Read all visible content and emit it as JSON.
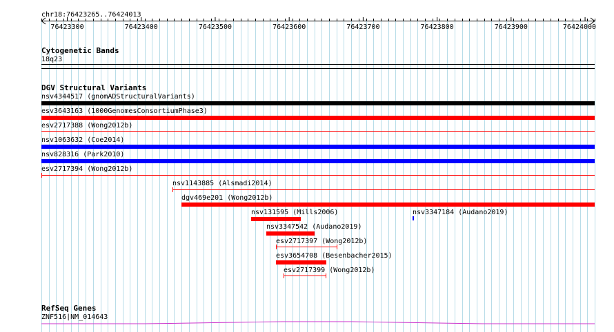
{
  "location": "chr18:76423265..76424013",
  "ruler": {
    "ticks": [
      "76423300",
      "76423400",
      "76423500",
      "76423600",
      "76423700",
      "76423800",
      "76423900",
      "76424000"
    ]
  },
  "tracks": {
    "cytoband": {
      "title": "Cytogenetic Bands",
      "band": "18q23"
    },
    "dgv": {
      "title": "DGV Structural Variants",
      "features": [
        {
          "label": "nsv4344517 (gnomADStructuralVariants)",
          "color": "#000000",
          "style": "thick"
        },
        {
          "label": "esv3643163 (1000GenomesConsortiumPhase3)",
          "color": "#ff0000",
          "style": "thick"
        },
        {
          "label": "esv2717388 (Wong2012b)",
          "color": "#ff0000",
          "style": "thin"
        },
        {
          "label": "nsv1063632 (Coe2014)",
          "color": "#0000ff",
          "style": "thick"
        },
        {
          "label": "nsv828316 (Park2010)",
          "color": "#0000ff",
          "style": "thick"
        },
        {
          "label": "esv2717394 (Wong2012b)",
          "color": "#ff0000",
          "style": "thin"
        },
        {
          "label": "nsv1143885 (Alsmadi2014)",
          "color": "#ff0000",
          "style": "thin"
        },
        {
          "label": "dgv469e201 (Wong2012b)",
          "color": "#ff0000",
          "style": "thick"
        },
        {
          "label": "nsv131595 (Mills2006)",
          "color": "#ff0000",
          "style": "thick"
        },
        {
          "label": "nsv3347184 (Audano2019)",
          "color": "#0000ff",
          "style": "tiny"
        },
        {
          "label": "nsv3347542 (Audano2019)",
          "color": "#ff0000",
          "style": "thick"
        },
        {
          "label": "esv2717397 (Wong2012b)",
          "color": "#ff0000",
          "style": "thin"
        },
        {
          "label": "esv3654708 (Besenbacher2015)",
          "color": "#ff0000",
          "style": "thick"
        },
        {
          "label": "esv2717399 (Wong2012b)",
          "color": "#ff0000",
          "style": "thin"
        }
      ]
    },
    "refseq": {
      "title": "RefSeq Genes",
      "gene": "ZNF516|NM_014643",
      "color": "#cc33cc"
    }
  }
}
